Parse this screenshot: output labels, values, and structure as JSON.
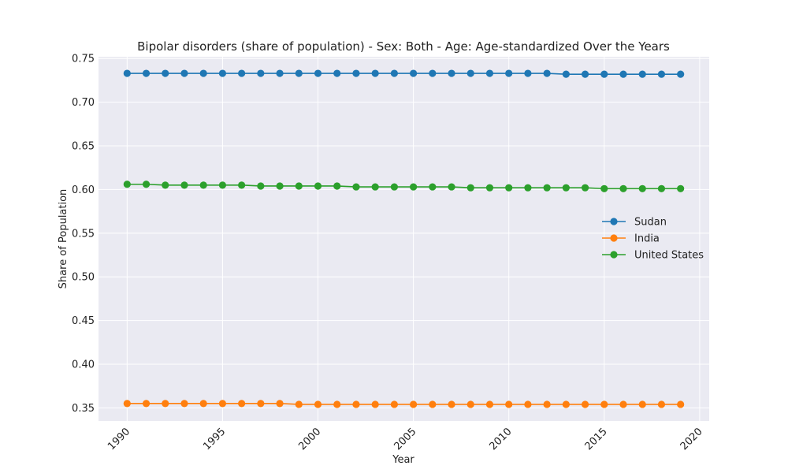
{
  "chart_data": {
    "type": "line",
    "title": "Bipolar disorders (share of population) - Sex: Both - Age: Age-standardized Over the Years",
    "xlabel": "Year",
    "ylabel": "Share of Population",
    "xlim": [
      1988.5,
      2020.5
    ],
    "ylim": [
      0.335,
      0.752
    ],
    "xticks": [
      1990,
      1995,
      2000,
      2005,
      2010,
      2015,
      2020
    ],
    "yticks": [
      0.35,
      0.4,
      0.45,
      0.5,
      0.55,
      0.6,
      0.65,
      0.7,
      0.75
    ],
    "ytick_labels": [
      "0.35",
      "0.40",
      "0.45",
      "0.50",
      "0.55",
      "0.60",
      "0.65",
      "0.70",
      "0.75"
    ],
    "grid": true,
    "legend_position": "center-right",
    "x": [
      1990,
      1991,
      1992,
      1993,
      1994,
      1995,
      1996,
      1997,
      1998,
      1999,
      2000,
      2001,
      2002,
      2003,
      2004,
      2005,
      2006,
      2007,
      2008,
      2009,
      2010,
      2011,
      2012,
      2013,
      2014,
      2015,
      2016,
      2017,
      2018,
      2019
    ],
    "series": [
      {
        "name": "Sudan",
        "color": "#1f77b4",
        "values": [
          0.733,
          0.733,
          0.733,
          0.733,
          0.733,
          0.733,
          0.733,
          0.733,
          0.733,
          0.733,
          0.733,
          0.733,
          0.733,
          0.733,
          0.733,
          0.733,
          0.733,
          0.733,
          0.733,
          0.733,
          0.733,
          0.733,
          0.733,
          0.732,
          0.732,
          0.732,
          0.732,
          0.732,
          0.732,
          0.732
        ]
      },
      {
        "name": "India",
        "color": "#ff7f0e",
        "values": [
          0.355,
          0.355,
          0.355,
          0.355,
          0.355,
          0.355,
          0.355,
          0.355,
          0.355,
          0.354,
          0.354,
          0.354,
          0.354,
          0.354,
          0.354,
          0.354,
          0.354,
          0.354,
          0.354,
          0.354,
          0.354,
          0.354,
          0.354,
          0.354,
          0.354,
          0.354,
          0.354,
          0.354,
          0.354,
          0.354
        ]
      },
      {
        "name": "United States",
        "color": "#2ca02c",
        "values": [
          0.606,
          0.606,
          0.605,
          0.605,
          0.605,
          0.605,
          0.605,
          0.604,
          0.604,
          0.604,
          0.604,
          0.604,
          0.603,
          0.603,
          0.603,
          0.603,
          0.603,
          0.603,
          0.602,
          0.602,
          0.602,
          0.602,
          0.602,
          0.602,
          0.602,
          0.601,
          0.601,
          0.601,
          0.601,
          0.601
        ]
      }
    ]
  }
}
